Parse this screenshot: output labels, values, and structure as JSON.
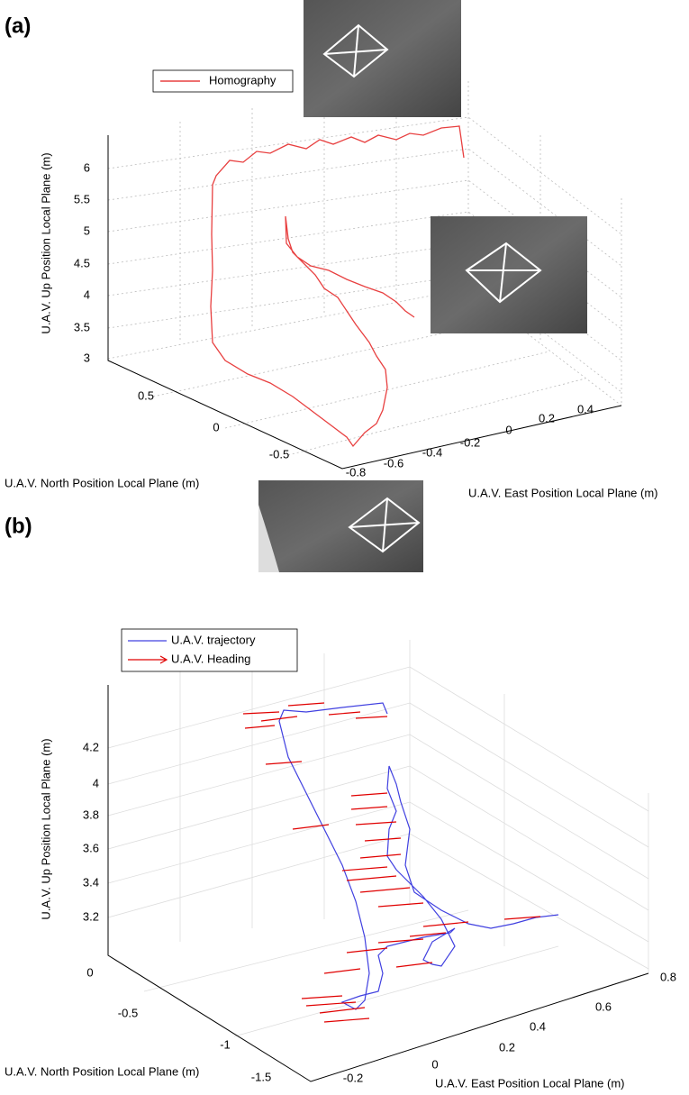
{
  "panels": [
    {
      "label": "(a)",
      "legend": [
        "Homography"
      ],
      "axes": {
        "up": "U.A.V. Up Position Local Plane (m)",
        "north": "U.A.V. North Position Local Plane (m)",
        "east": "U.A.V. East Position Local Plane (m)"
      },
      "up_ticks": [
        "6",
        "5.5",
        "5",
        "4.5",
        "4",
        "3.5",
        "3"
      ],
      "north_ticks": [
        "0.5",
        "0",
        "-0.5"
      ],
      "east_ticks": [
        "-0.8",
        "-0.6",
        "-0.4",
        "-0.2",
        "0",
        "0.2",
        "0.4"
      ]
    },
    {
      "label": "(b)",
      "legend": [
        "U.A.V. trajectory",
        "U.A.V. Heading"
      ],
      "axes": {
        "up": "U.A.V. Up Position Local Plane (m)",
        "north": "U.A.V. North Position Local Plane (m)",
        "east": "U.A.V. East Position Local Plane (m)"
      },
      "up_ticks": [
        "4.2",
        "4",
        "3.8",
        "3.6",
        "3.4",
        "3.2"
      ],
      "north_ticks": [
        "0",
        "-0.5",
        "-1",
        "-1.5"
      ],
      "east_ticks": [
        "-0.2",
        "0",
        "0.2",
        "0.4",
        "0.6",
        "0.8"
      ]
    }
  ]
}
